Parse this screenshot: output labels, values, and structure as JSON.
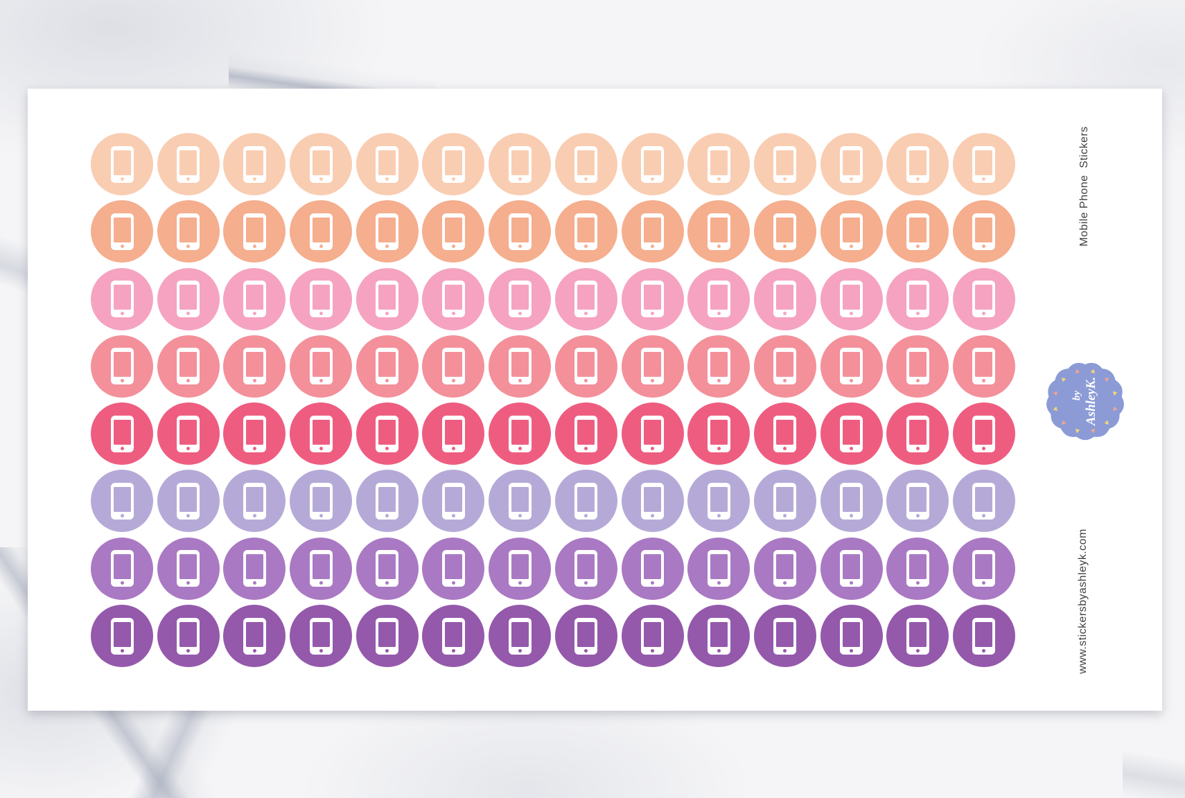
{
  "product": {
    "title": "Mobile Phone  Stickers",
    "website": "www.stickersbyashleyk.com",
    "text_color": "#3f3f3f",
    "badge": {
      "line1": "by",
      "line2": "AshleyK.",
      "background_color": "#8c9bd6",
      "text_color": "#ffffff",
      "heart_colors": [
        "#f2d478",
        "#f0a493"
      ],
      "heart_count": 12
    },
    "grid": {
      "columns": 14,
      "row_count": 8,
      "total_stickers": 112,
      "sticker_icon": "mobile-phone-icon",
      "rows": [
        {
          "name": "peach",
          "color": "#f9cdb2"
        },
        {
          "name": "orange-peach",
          "color": "#f5ae8e"
        },
        {
          "name": "pink",
          "color": "#f5a3c1"
        },
        {
          "name": "salmon",
          "color": "#f3909a"
        },
        {
          "name": "raspberry",
          "color": "#ee5d80"
        },
        {
          "name": "lavender",
          "color": "#b5aad7"
        },
        {
          "name": "orchid",
          "color": "#aa79c3"
        },
        {
          "name": "purple",
          "color": "#9459ab"
        }
      ]
    }
  }
}
